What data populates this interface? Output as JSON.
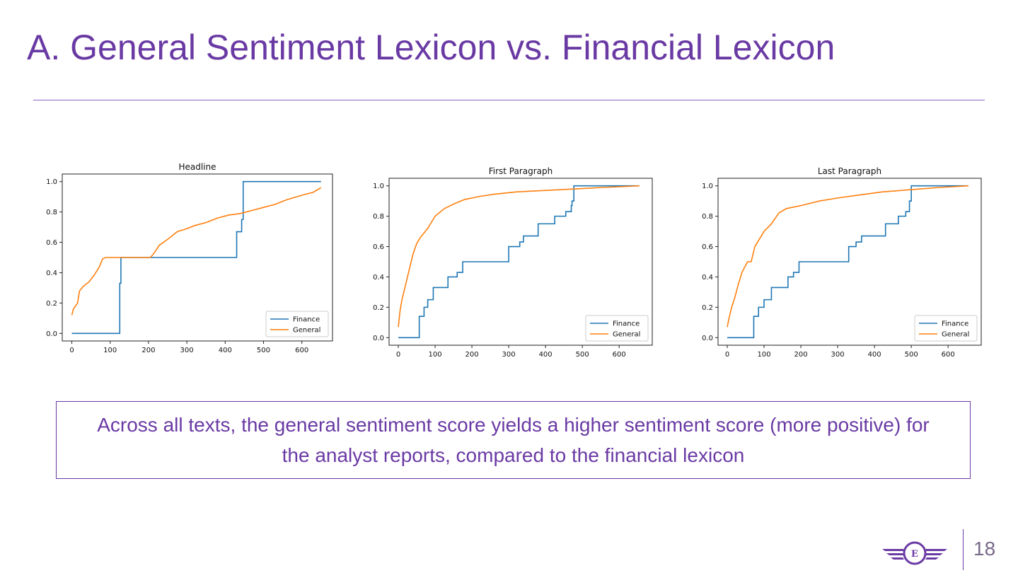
{
  "slide": {
    "title": "A. General Sentiment Lexicon vs. Financial Lexicon",
    "summary": "Across all texts, the general sentiment score yields a higher sentiment score (more positive) for the analyst reports, compared to the financial lexicon",
    "page_number": "18",
    "logo_letter": "E",
    "accent_color": "#6a3aa4"
  },
  "chart_data": [
    {
      "type": "line",
      "title": "Headline",
      "xlabel": "",
      "ylabel": "",
      "xlim": [
        -25,
        680
      ],
      "ylim": [
        -0.05,
        1.05
      ],
      "xticks": [
        "0",
        "100",
        "200",
        "300",
        "400",
        "500",
        "600"
      ],
      "yticks": [
        "0.0",
        "0.2",
        "0.4",
        "0.6",
        "0.8",
        "1.0"
      ],
      "grid": false,
      "legend": "lower-right",
      "series": [
        {
          "name": "Finance",
          "color": "#1f77b4",
          "step": true,
          "points": [
            [
              0,
              0
            ],
            [
              125,
              0
            ],
            [
              125,
              0.33
            ],
            [
              128,
              0.5
            ],
            [
              430,
              0.5
            ],
            [
              430,
              0.67
            ],
            [
              443,
              0.67
            ],
            [
              443,
              0.75
            ],
            [
              447,
              1.0
            ],
            [
              650,
              1.0
            ]
          ]
        },
        {
          "name": "General",
          "color": "#ff7f0e",
          "step": false,
          "points": [
            [
              0,
              0.12
            ],
            [
              4,
              0.16
            ],
            [
              15,
              0.2
            ],
            [
              20,
              0.28
            ],
            [
              30,
              0.31
            ],
            [
              45,
              0.34
            ],
            [
              60,
              0.39
            ],
            [
              72,
              0.44
            ],
            [
              80,
              0.49
            ],
            [
              88,
              0.5
            ],
            [
              205,
              0.5
            ],
            [
              215,
              0.53
            ],
            [
              228,
              0.58
            ],
            [
              250,
              0.62
            ],
            [
              275,
              0.67
            ],
            [
              300,
              0.69
            ],
            [
              320,
              0.71
            ],
            [
              350,
              0.73
            ],
            [
              380,
              0.76
            ],
            [
              410,
              0.78
            ],
            [
              440,
              0.79
            ],
            [
              470,
              0.81
            ],
            [
              500,
              0.83
            ],
            [
              530,
              0.85
            ],
            [
              560,
              0.88
            ],
            [
              600,
              0.91
            ],
            [
              630,
              0.93
            ],
            [
              650,
              0.96
            ]
          ]
        }
      ]
    },
    {
      "type": "line",
      "title": "First Paragraph",
      "xlabel": "",
      "ylabel": "",
      "xlim": [
        -25,
        690
      ],
      "ylim": [
        -0.05,
        1.05
      ],
      "xticks": [
        "0",
        "100",
        "200",
        "300",
        "400",
        "500",
        "600"
      ],
      "yticks": [
        "0.0",
        "0.2",
        "0.4",
        "0.6",
        "0.8",
        "1.0"
      ],
      "grid": false,
      "legend": "lower-right",
      "series": [
        {
          "name": "Finance",
          "color": "#1f77b4",
          "step": true,
          "points": [
            [
              0,
              0
            ],
            [
              57,
              0
            ],
            [
              57,
              0.14
            ],
            [
              70,
              0.2
            ],
            [
              80,
              0.25
            ],
            [
              95,
              0.33
            ],
            [
              135,
              0.33
            ],
            [
              135,
              0.4
            ],
            [
              160,
              0.43
            ],
            [
              175,
              0.5
            ],
            [
              300,
              0.5
            ],
            [
              300,
              0.6
            ],
            [
              330,
              0.63
            ],
            [
              340,
              0.67
            ],
            [
              370,
              0.67
            ],
            [
              380,
              0.75
            ],
            [
              420,
              0.75
            ],
            [
              425,
              0.8
            ],
            [
              455,
              0.83
            ],
            [
              470,
              0.87
            ],
            [
              472,
              0.9
            ],
            [
              477,
              1.0
            ],
            [
              655,
              1.0
            ]
          ]
        },
        {
          "name": "General",
          "color": "#ff7f0e",
          "step": false,
          "points": [
            [
              0,
              0.07
            ],
            [
              5,
              0.18
            ],
            [
              10,
              0.25
            ],
            [
              20,
              0.35
            ],
            [
              30,
              0.45
            ],
            [
              40,
              0.55
            ],
            [
              50,
              0.62
            ],
            [
              60,
              0.66
            ],
            [
              80,
              0.72
            ],
            [
              100,
              0.8
            ],
            [
              125,
              0.85
            ],
            [
              150,
              0.88
            ],
            [
              180,
              0.91
            ],
            [
              220,
              0.93
            ],
            [
              260,
              0.945
            ],
            [
              320,
              0.96
            ],
            [
              400,
              0.97
            ],
            [
              480,
              0.98
            ],
            [
              560,
              0.99
            ],
            [
              655,
              1.0
            ]
          ]
        }
      ]
    },
    {
      "type": "line",
      "title": "Last Paragraph",
      "xlabel": "",
      "ylabel": "",
      "xlim": [
        -25,
        690
      ],
      "ylim": [
        -0.05,
        1.05
      ],
      "xticks": [
        "0",
        "100",
        "200",
        "300",
        "400",
        "500",
        "600"
      ],
      "yticks": [
        "0.0",
        "0.2",
        "0.4",
        "0.6",
        "0.8",
        "1.0"
      ],
      "grid": false,
      "legend": "lower-right",
      "series": [
        {
          "name": "Finance",
          "color": "#1f77b4",
          "step": true,
          "points": [
            [
              0,
              0
            ],
            [
              72,
              0
            ],
            [
              72,
              0.14
            ],
            [
              85,
              0.2
            ],
            [
              100,
              0.25
            ],
            [
              120,
              0.33
            ],
            [
              165,
              0.33
            ],
            [
              165,
              0.4
            ],
            [
              180,
              0.43
            ],
            [
              195,
              0.5
            ],
            [
              330,
              0.5
            ],
            [
              330,
              0.6
            ],
            [
              350,
              0.63
            ],
            [
              365,
              0.67
            ],
            [
              430,
              0.67
            ],
            [
              430,
              0.75
            ],
            [
              460,
              0.75
            ],
            [
              465,
              0.8
            ],
            [
              485,
              0.83
            ],
            [
              495,
              0.9
            ],
            [
              500,
              1.0
            ],
            [
              655,
              1.0
            ]
          ]
        },
        {
          "name": "General",
          "color": "#ff7f0e",
          "step": false,
          "points": [
            [
              0,
              0.07
            ],
            [
              5,
              0.13
            ],
            [
              12,
              0.2
            ],
            [
              20,
              0.26
            ],
            [
              30,
              0.35
            ],
            [
              40,
              0.43
            ],
            [
              55,
              0.5
            ],
            [
              65,
              0.5
            ],
            [
              75,
              0.6
            ],
            [
              90,
              0.66
            ],
            [
              100,
              0.7
            ],
            [
              120,
              0.75
            ],
            [
              140,
              0.82
            ],
            [
              160,
              0.85
            ],
            [
              200,
              0.87
            ],
            [
              250,
              0.9
            ],
            [
              300,
              0.92
            ],
            [
              360,
              0.94
            ],
            [
              420,
              0.96
            ],
            [
              500,
              0.975
            ],
            [
              580,
              0.99
            ],
            [
              655,
              1.0
            ]
          ]
        }
      ]
    }
  ]
}
